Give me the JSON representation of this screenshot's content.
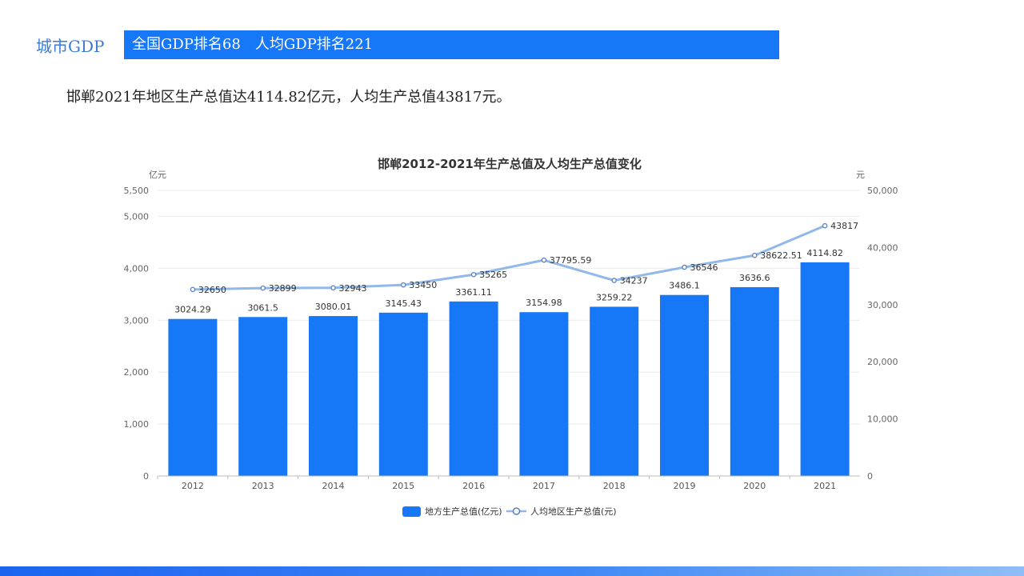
{
  "header": {
    "section_label": "城市GDP",
    "banner_text": "全国GDP排名68　人均GDP排名221"
  },
  "summary": "邯郸2021年地区生产总值达4114.82亿元，人均生产总值43817元。",
  "colors": {
    "bar": "#1677f7",
    "line": "#90b8e8",
    "marker": "#5b7fc4",
    "accent": "#3a7bd5"
  },
  "chart_data": {
    "type": "bar",
    "title": "邯郸2012-2021年生产总值及人均生产总值变化",
    "categories": [
      "2012",
      "2013",
      "2014",
      "2015",
      "2016",
      "2017",
      "2018",
      "2019",
      "2020",
      "2021"
    ],
    "y_left_unit": "亿元",
    "y_right_unit": "元",
    "y_left_ticks": [
      "0",
      "1,000",
      "2,000",
      "3,000",
      "4,000",
      "5,000",
      "5,500"
    ],
    "y_left_tick_values": [
      0,
      1000,
      2000,
      3000,
      4000,
      5000,
      5500
    ],
    "y_right_ticks": [
      "0",
      "10,000",
      "20,000",
      "30,000",
      "40,000",
      "50,000"
    ],
    "y_right_tick_values": [
      0,
      10000,
      20000,
      30000,
      40000,
      50000
    ],
    "y_left_lim": [
      0,
      5500
    ],
    "y_right_lim": [
      0,
      50000
    ],
    "legend_position": "bottom-center",
    "series": [
      {
        "name": "地方生产总值(亿元)",
        "type": "bar",
        "axis": "left",
        "values": [
          3024.29,
          3061.5,
          3080.01,
          3145.43,
          3361.11,
          3154.98,
          3259.22,
          3486.1,
          3636.6,
          4114.82
        ],
        "labels": [
          "3024.29",
          "3061.5",
          "3080.01",
          "3145.43",
          "3361.11",
          "3154.98",
          "3259.22",
          "3486.1",
          "3636.6",
          "4114.82"
        ]
      },
      {
        "name": "人均地区生产总值(元)",
        "type": "line",
        "axis": "right",
        "values": [
          32650,
          32899,
          32943,
          33450,
          35265,
          37795.59,
          34237,
          36546,
          38622.51,
          43817
        ],
        "labels": [
          "32650",
          "32899",
          "32943",
          "33450",
          "35265",
          "37795.59",
          "34237",
          "36546",
          "38622.51",
          "43817"
        ]
      }
    ]
  }
}
